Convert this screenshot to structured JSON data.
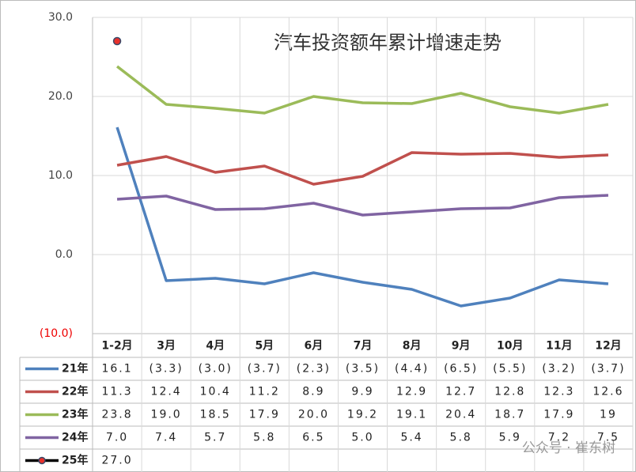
{
  "chart_data": {
    "type": "line",
    "title": "汽车投资额年累计增速走势",
    "categories": [
      "1-2月",
      "3月",
      "4月",
      "5月",
      "6月",
      "7月",
      "8月",
      "9月",
      "10月",
      "11月",
      "12月"
    ],
    "ylim": [
      -10,
      30
    ],
    "yticks": [
      {
        "value": -10,
        "label": "(10.0)"
      },
      {
        "value": 0,
        "label": "0.0"
      },
      {
        "value": 10,
        "label": "10.0"
      },
      {
        "value": 20,
        "label": "20.0"
      },
      {
        "value": 30,
        "label": "30.0"
      }
    ],
    "grid": true,
    "series": [
      {
        "name": "21年",
        "color": "#4f81bd",
        "values": [
          16.1,
          -3.3,
          -3.0,
          -3.7,
          -2.3,
          -3.5,
          -4.4,
          -6.5,
          -5.5,
          -3.2,
          -3.7
        ],
        "value_labels": [
          "16.1",
          "(3.3)",
          "(3.0)",
          "(3.7)",
          "(2.3)",
          "(3.5)",
          "(4.4)",
          "(6.5)",
          "(5.5)",
          "(3.2)",
          "(3.7)"
        ]
      },
      {
        "name": "22年",
        "color": "#c0504d",
        "values": [
          11.3,
          12.4,
          10.4,
          11.2,
          8.9,
          9.9,
          12.9,
          12.7,
          12.8,
          12.3,
          12.6
        ],
        "value_labels": [
          "11.3",
          "12.4",
          "10.4",
          "11.2",
          "8.9",
          "9.9",
          "12.9",
          "12.7",
          "12.8",
          "12.3",
          "12.6"
        ]
      },
      {
        "name": "23年",
        "color": "#9bbb59",
        "values": [
          23.8,
          19.0,
          18.5,
          17.9,
          20.0,
          19.2,
          19.1,
          20.4,
          18.7,
          17.9,
          19
        ],
        "value_labels": [
          "23.8",
          "19.0",
          "18.5",
          "17.9",
          "20.0",
          "19.2",
          "19.1",
          "20.4",
          "18.7",
          "17.9",
          "19"
        ]
      },
      {
        "name": "24年",
        "color": "#8064a2",
        "values": [
          7.0,
          7.4,
          5.7,
          5.8,
          6.5,
          5.0,
          5.4,
          5.8,
          5.9,
          7.2,
          7.5
        ],
        "value_labels": [
          "7.0",
          "7.4",
          "5.7",
          "5.8",
          "6.5",
          "5.0",
          "5.4",
          "5.8",
          "5.9",
          "7.2",
          "7.5"
        ]
      },
      {
        "name": "25年",
        "color": "#e8312c",
        "values": [
          27.0,
          null,
          null,
          null,
          null,
          null,
          null,
          null,
          null,
          null,
          null
        ],
        "value_labels": [
          "27.0",
          null,
          null,
          null,
          null,
          null,
          null,
          null,
          null,
          null,
          null
        ]
      }
    ],
    "watermark": "公众号 · 崔东树"
  }
}
